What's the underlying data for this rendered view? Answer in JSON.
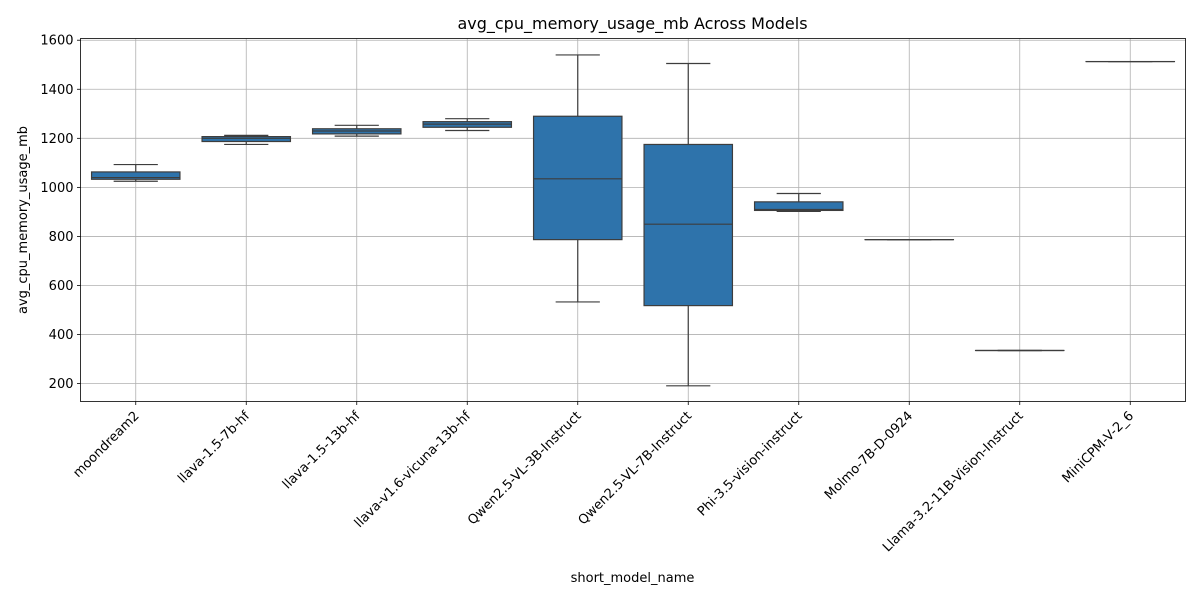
{
  "chart_data": {
    "type": "box",
    "title": "avg_cpu_memory_usage_mb Across Models",
    "xlabel": "short_model_name",
    "ylabel": "avg_cpu_memory_usage_mb",
    "ylim": [
      127,
      1607
    ],
    "yticks": [
      200,
      400,
      600,
      800,
      1000,
      1200,
      1400,
      1600
    ],
    "grid": true,
    "box_color": "#2e73ab",
    "categories": [
      "moondream2",
      "llava-1.5-7b-hf",
      "llava-1.5-13b-hf",
      "llava-v1.6-vicuna-13b-hf",
      "Qwen2.5-VL-3B-Instruct",
      "Qwen2.5-VL-7B-Instruct",
      "Phi-3.5-vision-instruct",
      "Molmo-7B-D-0924",
      "Llama-3.2-11B-Vision-Instruct",
      "MiniCPM-V-2_6"
    ],
    "boxes": [
      {
        "name": "moondream2",
        "whisker_low": 1025,
        "q1": 1033,
        "median": 1040,
        "q3": 1063,
        "whisker_high": 1093
      },
      {
        "name": "llava-1.5-7b-hf",
        "whisker_low": 1175,
        "q1": 1187,
        "median": 1200,
        "q3": 1207,
        "whisker_high": 1212
      },
      {
        "name": "llava-1.5-13b-hf",
        "whisker_low": 1209,
        "q1": 1218,
        "median": 1230,
        "q3": 1239,
        "whisker_high": 1253
      },
      {
        "name": "llava-v1.6-vicuna-13b-hf",
        "whisker_low": 1232,
        "q1": 1245,
        "median": 1258,
        "q3": 1268,
        "whisker_high": 1280
      },
      {
        "name": "Qwen2.5-VL-3B-Instruct",
        "whisker_low": 533,
        "q1": 787,
        "median": 1035,
        "q3": 1290,
        "whisker_high": 1540
      },
      {
        "name": "Qwen2.5-VL-7B-Instruct",
        "whisker_low": 191,
        "q1": 518,
        "median": 850,
        "q3": 1175,
        "whisker_high": 1505
      },
      {
        "name": "Phi-3.5-vision-instruct",
        "whisker_low": 902,
        "q1": 906,
        "median": 910,
        "q3": 941,
        "whisker_high": 975
      },
      {
        "name": "Molmo-7B-D-0924",
        "whisker_low": 787,
        "q1": 787,
        "median": 787,
        "q3": 787,
        "whisker_high": 787
      },
      {
        "name": "Llama-3.2-11B-Vision-Instruct",
        "whisker_low": 335,
        "q1": 335,
        "median": 335,
        "q3": 335,
        "whisker_high": 335
      },
      {
        "name": "MiniCPM-V-2_6",
        "whisker_low": 1513,
        "q1": 1513,
        "median": 1513,
        "q3": 1513,
        "whisker_high": 1513
      }
    ]
  }
}
